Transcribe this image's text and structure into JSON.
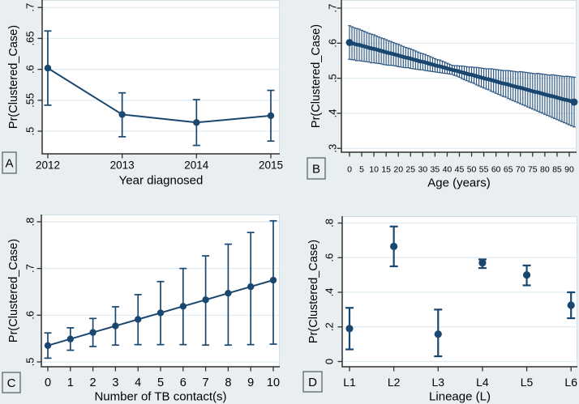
{
  "figure": {
    "description": "Four-panel margins plot of predicted probability of clustered TB case",
    "background_color": "#e9eff1",
    "plot_background": "#ffffff",
    "grid_color": "#dfeaf0",
    "frame_color": "#d2dee5",
    "axis_color": "#303030",
    "navy_color": "#1a476f",
    "band_bar_color": "#2a5580",
    "panel_letters": [
      "A",
      "B",
      "C",
      "D"
    ]
  },
  "chart_data": [
    {
      "id": "A",
      "panel_label": "A",
      "type": "line",
      "title": "",
      "xlabel": "Year diagnosed",
      "ylabel": "Pr(Clustered_Case)",
      "x": [
        2012,
        2013,
        2014,
        2015
      ],
      "xtick_labels": [
        "2012",
        "2013",
        "2014",
        "2015"
      ],
      "values": [
        0.602,
        0.527,
        0.514,
        0.525
      ],
      "ci_low": [
        0.542,
        0.491,
        0.477,
        0.484
      ],
      "ci_high": [
        0.662,
        0.562,
        0.551,
        0.566
      ],
      "yticks": [
        0.5,
        0.55,
        0.6,
        0.65,
        0.7
      ],
      "ytick_labels": [
        ".5",
        ".55",
        ".6",
        ".65",
        ".7"
      ],
      "ylim": [
        0.4634,
        0.712
      ],
      "xlim": [
        2011.924,
        2015.12
      ],
      "grid": true,
      "legend": "none"
    },
    {
      "id": "B",
      "panel_label": "B",
      "type": "line",
      "title": "",
      "xlabel": "Age (years)",
      "ylabel": "Pr(Clustered_Case)",
      "x_start": 0,
      "x_step": 1,
      "values": [
        0.602,
        0.6,
        0.598,
        0.596,
        0.595,
        0.593,
        0.591,
        0.589,
        0.587,
        0.585,
        0.584,
        0.582,
        0.58,
        0.578,
        0.576,
        0.574,
        0.572,
        0.571,
        0.569,
        0.567,
        0.565,
        0.563,
        0.561,
        0.559,
        0.558,
        0.556,
        0.554,
        0.552,
        0.55,
        0.548,
        0.547,
        0.545,
        0.543,
        0.541,
        0.539,
        0.537,
        0.535,
        0.534,
        0.532,
        0.53,
        0.528,
        0.526,
        0.524,
        0.522,
        0.521,
        0.519,
        0.517,
        0.515,
        0.513,
        0.511,
        0.51,
        0.508,
        0.506,
        0.504,
        0.502,
        0.5,
        0.498,
        0.497,
        0.495,
        0.493,
        0.491,
        0.489,
        0.487,
        0.485,
        0.484,
        0.482,
        0.48,
        0.478,
        0.476,
        0.474,
        0.473,
        0.471,
        0.469,
        0.467,
        0.465,
        0.463,
        0.461,
        0.46,
        0.458,
        0.456,
        0.454,
        0.452,
        0.45,
        0.449,
        0.447,
        0.445,
        0.443,
        0.441,
        0.439,
        0.438,
        0.436,
        0.434,
        0.432
      ],
      "ci_half": [
        0.048,
        0.047,
        0.046,
        0.046,
        0.045,
        0.044,
        0.043,
        0.042,
        0.041,
        0.041,
        0.04,
        0.039,
        0.038,
        0.037,
        0.037,
        0.036,
        0.035,
        0.034,
        0.033,
        0.032,
        0.032,
        0.031,
        0.03,
        0.029,
        0.028,
        0.028,
        0.027,
        0.026,
        0.025,
        0.024,
        0.023,
        0.023,
        0.022,
        0.021,
        0.02,
        0.019,
        0.018,
        0.018,
        0.017,
        0.016,
        0.015,
        0.014,
        0.013,
        0.014,
        0.015,
        0.016,
        0.018,
        0.019,
        0.02,
        0.021,
        0.022,
        0.023,
        0.025,
        0.026,
        0.027,
        0.028,
        0.029,
        0.03,
        0.032,
        0.033,
        0.034,
        0.035,
        0.036,
        0.037,
        0.038,
        0.04,
        0.041,
        0.042,
        0.043,
        0.044,
        0.046,
        0.047,
        0.048,
        0.049,
        0.05,
        0.051,
        0.052,
        0.054,
        0.055,
        0.056,
        0.057,
        0.058,
        0.059,
        0.061,
        0.062,
        0.063,
        0.064,
        0.065,
        0.066,
        0.068,
        0.069,
        0.07,
        0.071
      ],
      "xticks": [
        0,
        5,
        10,
        15,
        20,
        25,
        30,
        35,
        40,
        45,
        50,
        55,
        60,
        65,
        70,
        75,
        80,
        85,
        90
      ],
      "xtick_labels": [
        "0",
        "5",
        "10",
        "15",
        "20",
        "25",
        "30",
        "35",
        "40",
        "45",
        "50",
        "55",
        "60",
        "65",
        "70",
        "75",
        "80",
        "85",
        "90"
      ],
      "yticks": [
        0.3,
        0.4,
        0.5,
        0.6,
        0.7
      ],
      "ytick_labels": [
        ".3",
        ".4",
        ".5",
        ".6",
        ".7"
      ],
      "ylim": [
        0.289,
        0.723
      ],
      "xlim": [
        -3.3,
        93.0
      ],
      "grid": true,
      "legend": "none"
    },
    {
      "id": "C",
      "panel_label": "C",
      "type": "line",
      "title": "",
      "xlabel": "Number of TB contact(s)",
      "ylabel": "Pr(Clustered_Case)",
      "x": [
        0,
        1,
        2,
        3,
        4,
        5,
        6,
        7,
        8,
        9,
        10
      ],
      "xtick_labels": [
        "0",
        "1",
        "2",
        "3",
        "4",
        "5",
        "6",
        "7",
        "8",
        "9",
        "10"
      ],
      "values": [
        0.535,
        0.549,
        0.563,
        0.577,
        0.591,
        0.605,
        0.619,
        0.633,
        0.647,
        0.661,
        0.675
      ],
      "ci_low": [
        0.508,
        0.525,
        0.533,
        0.536,
        0.537,
        0.537,
        0.537,
        0.536,
        0.536,
        0.537,
        0.538
      ],
      "ci_high": [
        0.562,
        0.573,
        0.593,
        0.618,
        0.644,
        0.672,
        0.7,
        0.727,
        0.752,
        0.777,
        0.802
      ],
      "yticks": [
        0.5,
        0.6,
        0.7,
        0.8
      ],
      "ytick_labels": [
        ".5",
        ".6",
        ".7",
        ".8"
      ],
      "ylim": [
        0.4896,
        0.8154
      ],
      "xlim": [
        -0.29,
        10.29
      ],
      "grid": true,
      "legend": "none"
    },
    {
      "id": "D",
      "panel_label": "D",
      "type": "scatter",
      "title": "",
      "xlabel": "Lineage (L)",
      "ylabel": "Pr(Clustered_Case)",
      "categories": [
        "L1",
        "L2",
        "L3",
        "L4",
        "L5",
        "L6"
      ],
      "values": [
        0.19,
        0.665,
        0.158,
        0.57,
        0.5,
        0.325
      ],
      "ci_low": [
        0.07,
        0.55,
        0.03,
        0.54,
        0.44,
        0.25
      ],
      "ci_high": [
        0.31,
        0.78,
        0.3,
        0.59,
        0.555,
        0.4
      ],
      "yticks": [
        0,
        0.2,
        0.4,
        0.6,
        0.8
      ],
      "ytick_labels": [
        "0",
        ".2",
        ".4",
        ".6",
        ".8"
      ],
      "ylim": [
        -0.0304,
        0.8398
      ],
      "xlim_index": [
        -0.165,
        5.143
      ],
      "grid": true,
      "legend": "none"
    }
  ]
}
